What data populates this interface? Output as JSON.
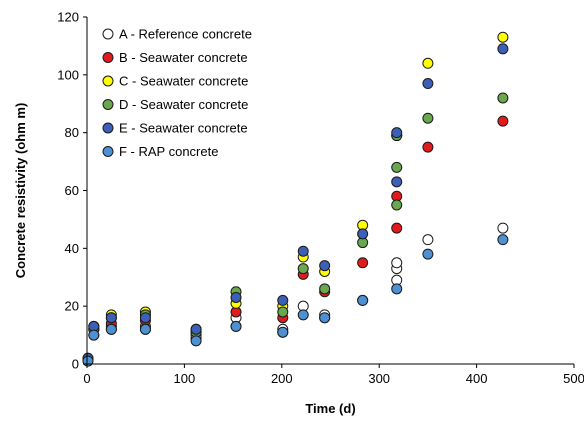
{
  "chart_data": {
    "type": "scatter",
    "xlabel": "Time (d)",
    "ylabel": "Concrete resistivity (ohm m)",
    "xlim": [
      0,
      500
    ],
    "ylim": [
      0,
      120
    ],
    "xticks": [
      0,
      100,
      200,
      300,
      400,
      500
    ],
    "yticks": [
      0,
      20,
      40,
      60,
      80,
      100,
      120
    ],
    "grid": false,
    "legend_position": "top-left",
    "series": [
      {
        "name": "A - Reference concrete",
        "color": "#ffffff",
        "points": [
          [
            1,
            1.5
          ],
          [
            7,
            10
          ],
          [
            7,
            12
          ],
          [
            25,
            13
          ],
          [
            25,
            12
          ],
          [
            60,
            13
          ],
          [
            60,
            12
          ],
          [
            112,
            9
          ],
          [
            112,
            10
          ],
          [
            153,
            13
          ],
          [
            153,
            16
          ],
          [
            201,
            11
          ],
          [
            201,
            12
          ],
          [
            222,
            20
          ],
          [
            244,
            16
          ],
          [
            244,
            17
          ],
          [
            283,
            22
          ],
          [
            318,
            29
          ],
          [
            318,
            33
          ],
          [
            318,
            35
          ],
          [
            350,
            43
          ],
          [
            427,
            47
          ]
        ]
      },
      {
        "name": "B - Seawater concrete",
        "color": "#e31a1c",
        "points": [
          [
            1,
            1.5
          ],
          [
            7,
            12
          ],
          [
            25,
            14
          ],
          [
            60,
            15
          ],
          [
            112,
            11
          ],
          [
            153,
            18
          ],
          [
            201,
            16
          ],
          [
            222,
            31
          ],
          [
            244,
            25
          ],
          [
            283,
            35
          ],
          [
            318,
            47
          ],
          [
            318,
            58
          ],
          [
            350,
            75
          ],
          [
            427,
            84
          ]
        ]
      },
      {
        "name": "C - Seawater concrete",
        "color": "#ffff00",
        "points": [
          [
            1,
            2
          ],
          [
            7,
            13
          ],
          [
            25,
            17
          ],
          [
            60,
            18
          ],
          [
            112,
            12
          ],
          [
            153,
            21
          ],
          [
            201,
            20
          ],
          [
            222,
            37
          ],
          [
            244,
            32
          ],
          [
            283,
            48
          ],
          [
            318,
            79
          ],
          [
            350,
            104
          ],
          [
            427,
            113
          ]
        ]
      },
      {
        "name": "D - Seawater concrete",
        "color": "#6aa84f",
        "points": [
          [
            1,
            1.5
          ],
          [
            7,
            12
          ],
          [
            25,
            16
          ],
          [
            60,
            17
          ],
          [
            112,
            11
          ],
          [
            153,
            25
          ],
          [
            201,
            18
          ],
          [
            222,
            33
          ],
          [
            244,
            26
          ],
          [
            283,
            42
          ],
          [
            318,
            55
          ],
          [
            318,
            68
          ],
          [
            318,
            79
          ],
          [
            350,
            85
          ],
          [
            427,
            92
          ]
        ]
      },
      {
        "name": "E - Seawater concrete",
        "color": "#3c5fb7",
        "points": [
          [
            1,
            2
          ],
          [
            7,
            13
          ],
          [
            25,
            16
          ],
          [
            60,
            16
          ],
          [
            112,
            12
          ],
          [
            153,
            23
          ],
          [
            201,
            22
          ],
          [
            222,
            39
          ],
          [
            244,
            34
          ],
          [
            283,
            45
          ],
          [
            318,
            63
          ],
          [
            318,
            80
          ],
          [
            350,
            97
          ],
          [
            427,
            109
          ]
        ]
      },
      {
        "name": "F - RAP concrete",
        "color": "#4e91d2",
        "points": [
          [
            1,
            1
          ],
          [
            7,
            10
          ],
          [
            25,
            12
          ],
          [
            60,
            12
          ],
          [
            112,
            8
          ],
          [
            153,
            13
          ],
          [
            201,
            11
          ],
          [
            222,
            17
          ],
          [
            244,
            16
          ],
          [
            283,
            22
          ],
          [
            318,
            26
          ],
          [
            350,
            38
          ],
          [
            427,
            43
          ]
        ]
      }
    ]
  }
}
